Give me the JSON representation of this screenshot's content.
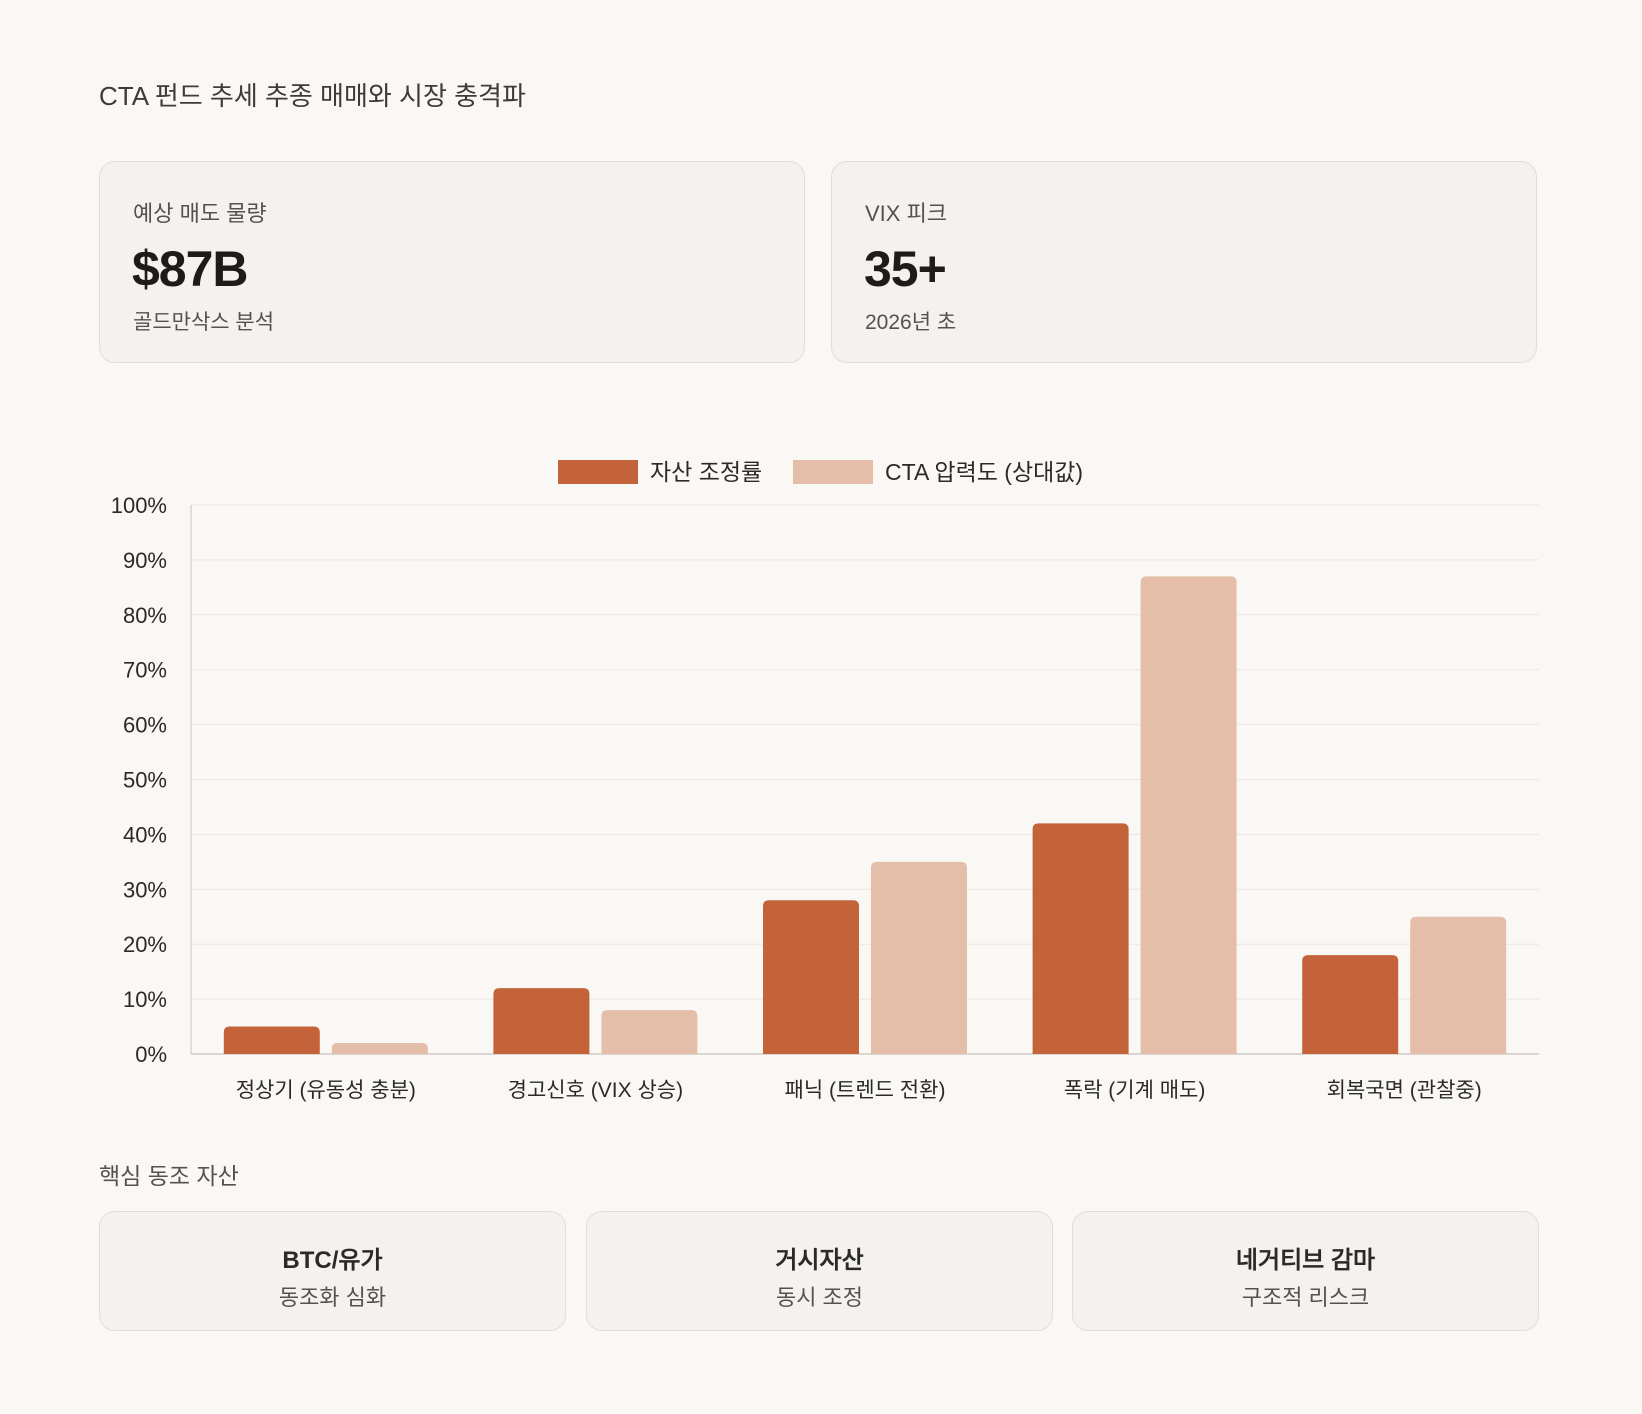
{
  "title": "CTA 펀드 추세 추종 매매와 시장 충격파",
  "kpis": [
    {
      "label": "예상 매도 물량",
      "value": "$87B",
      "sub": "골드만삭스 분석"
    },
    {
      "label": "VIX 피크",
      "value": "35+",
      "sub": "2026년 초"
    }
  ],
  "chart_data": {
    "type": "bar",
    "categories": [
      "정상기 (유동성 충분)",
      "경고신호 (VIX 상승)",
      "패닉 (트렌드 전환)",
      "폭락 (기계 매도)",
      "회복국면 (관찰중)"
    ],
    "series": [
      {
        "name": "자산 조정률",
        "values": [
          5,
          12,
          28,
          42,
          18
        ],
        "color": "#c4633a"
      },
      {
        "name": "CTA 압력도 (상대값)",
        "values": [
          2,
          8,
          35,
          87,
          25
        ],
        "color": "#e4bea9"
      }
    ],
    "y_ticks": [
      "0%",
      "10%",
      "20%",
      "30%",
      "40%",
      "50%",
      "60%",
      "70%",
      "80%",
      "90%",
      "100%"
    ],
    "ylim": [
      0,
      100
    ],
    "grid": true,
    "legend_position": "top-center"
  },
  "assets_section": {
    "title": "핵심 동조 자산",
    "items": [
      {
        "name": "BTC/유가",
        "desc": "동조화 심화"
      },
      {
        "name": "거시자산",
        "desc": "동시 조정"
      },
      {
        "name": "네거티브 감마",
        "desc": "구조적 리스크"
      }
    ]
  }
}
